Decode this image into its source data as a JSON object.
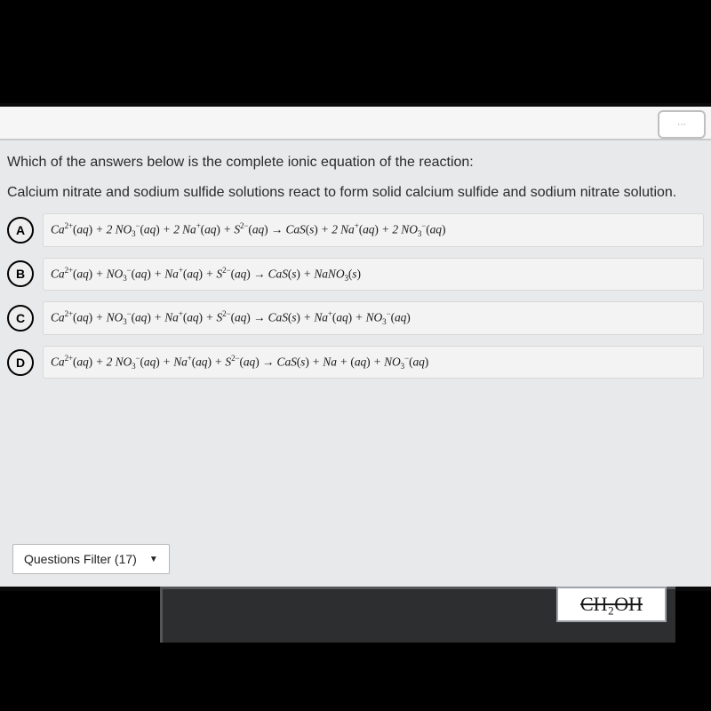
{
  "colors": {
    "page_bg": "#000000",
    "screen_bg": "#e8e9ea",
    "topbar_bg": "#f6f6f6",
    "answer_bg": "#f3f3f3",
    "answer_border": "#d8d8d8",
    "text": "#2a2a2a"
  },
  "prompt": {
    "line1": "Which of the answers below is the complete ionic equation of the reaction:",
    "line2": "Calcium nitrate and sodium sulfide solutions react to form solid calcium sulfide and sodium nitrate solution."
  },
  "options": [
    {
      "letter": "A",
      "equation_html": "Ca<sup>2+</sup><span class='rm'>(</span>aq<span class='rm'>)</span> + 2 NO<sub>3</sub><sup>−</sup><span class='rm'>(</span>aq<span class='rm'>)</span> + 2 Na<sup>+</sup><span class='rm'>(</span>aq<span class='rm'>)</span> + S<sup>2−</sup><span class='rm'>(</span>aq<span class='rm'>)</span> → CaS<span class='rm'>(</span>s<span class='rm'>)</span>  + 2 Na<sup>+</sup><span class='rm'>(</span>aq<span class='rm'>)</span> + 2 NO<sub>3</sub><sup>−</sup><span class='rm'>(</span>aq<span class='rm'>)</span>"
    },
    {
      "letter": "B",
      "equation_html": "Ca<sup>2+</sup><span class='rm'>(</span>aq<span class='rm'>)</span>  +  NO<sub>3</sub><sup>−</sup><span class='rm'>(</span>aq<span class='rm'>)</span>  +  Na<sup>+</sup><span class='rm'>(</span>aq<span class='rm'>)</span> +  S<sup>2−</sup><span class='rm'>(</span>aq<span class='rm'>)</span> → CaS<span class='rm'>(</span>s<span class='rm'>)</span>  +  NaNO<sub>3</sub><span class='rm'>(</span>s<span class='rm'>)</span>"
    },
    {
      "letter": "C",
      "equation_html": "Ca<sup>2+</sup><span class='rm'>(</span>aq<span class='rm'>)</span> + NO<sub>3</sub><sup>−</sup><span class='rm'>(</span>aq<span class='rm'>)</span> +  Na<sup>+</sup><span class='rm'>(</span>aq<span class='rm'>)</span> + S<sup>2−</sup><span class='rm'>(</span>aq<span class='rm'>)</span> → CaS<span class='rm'>(</span>s<span class='rm'>)</span>  +  Na<sup>+</sup><span class='rm'>(</span>aq<span class='rm'>)</span>  +  NO<sub>3</sub><sup>−</sup><span class='rm'>(</span>aq<span class='rm'>)</span>"
    },
    {
      "letter": "D",
      "equation_html": "Ca<sup>2+</sup><span class='rm'>(</span>aq<span class='rm'>)</span> + 2 NO<sub>3</sub><sup>−</sup><span class='rm'>(</span>aq<span class='rm'>)</span> + Na<sup>+</sup><span class='rm'>(</span>aq<span class='rm'>)</span> + S<sup>2−</sup><span class='rm'>(</span>aq<span class='rm'>)</span> → CaS<span class='rm'>(</span>s<span class='rm'>)</span> + Na + <span class='rm'>(</span>aq<span class='rm'>)</span> + NO<sub>3</sub><sup>−</sup><span class='rm'>(</span>aq<span class='rm'>)</span>"
    }
  ],
  "filter": {
    "label": "Questions Filter (17)"
  },
  "bottom_sticker": "CH₂OH",
  "bottom_sticker_struck": true
}
